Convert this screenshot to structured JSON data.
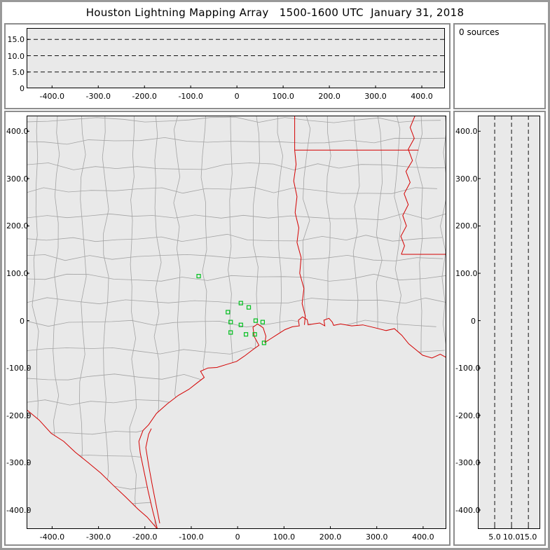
{
  "window": {
    "title": "Houston Lightning Mapping Array   1500-1600 UTC  January 31, 2018"
  },
  "status_panel": {
    "text": "0 sources"
  },
  "colors": {
    "plot_background": "#e9e9e9",
    "county_line": "#a3a3a3",
    "state_border": "#d40000",
    "station_marker": "#00bf1e",
    "grid_dash": "#111111",
    "panel_frame": "#8d8d8d"
  },
  "chart_data": [
    {
      "id": "altitude_vs_eastwest",
      "type": "scatter",
      "description": "Altitude (km) vs east-west distance (km); empty, 0 lightning sources plotted",
      "x_ticks": [
        -400,
        -300,
        -200,
        -100,
        0,
        100,
        200,
        300,
        400
      ],
      "x_tick_labels": [
        "-400.0",
        "-300.0",
        "-200.0",
        "-100.0",
        "0",
        "100.0",
        "200.0",
        "300.0",
        "400.0"
      ],
      "xlim": [
        -455,
        450
      ],
      "y_ticks": [
        0,
        5,
        10,
        15
      ],
      "y_tick_labels": [
        "0",
        "5.0",
        "10.0",
        "15.0"
      ],
      "ylim": [
        0,
        18.5
      ],
      "grid": {
        "orientation": "horizontal",
        "values": [
          5,
          10,
          15
        ],
        "style": "dashed"
      },
      "points": []
    },
    {
      "id": "plan_view_map",
      "type": "scatter",
      "description": "Plan view map (km east-west vs km north-south) centered on Houston; gray county lines, red state borders and coastline, green squares are LMA stations; no source points",
      "x_ticks": [
        -400,
        -300,
        -200,
        -100,
        0,
        100,
        200,
        300,
        400
      ],
      "x_tick_labels": [
        "-400.0",
        "-300.0",
        "-200.0",
        "-100.0",
        "0",
        "100.0",
        "200.0",
        "300.0",
        "400.0"
      ],
      "xlim": [
        -455,
        450
      ],
      "y_ticks": [
        400,
        300,
        200,
        100,
        0,
        -100,
        -200,
        -300,
        -400
      ],
      "y_tick_labels": [
        "400.0",
        "300.0",
        "200.0",
        "100.0",
        "0",
        "-100.0",
        "-200.0",
        "-300.0",
        "-400.0"
      ],
      "ylim": [
        -440,
        433
      ],
      "stations": [
        {
          "x": -84,
          "y": 94
        },
        {
          "x": 7,
          "y": 37
        },
        {
          "x": 24,
          "y": 28
        },
        {
          "x": -21,
          "y": 18
        },
        {
          "x": -15,
          "y": -3
        },
        {
          "x": 7,
          "y": -9
        },
        {
          "x": 39,
          "y": 0
        },
        {
          "x": 54,
          "y": -3
        },
        {
          "x": -15,
          "y": -25
        },
        {
          "x": 18,
          "y": -29
        },
        {
          "x": 37,
          "y": -29
        },
        {
          "x": 57,
          "y": -47
        }
      ],
      "points": []
    },
    {
      "id": "altitude_vs_northsouth",
      "type": "scatter",
      "description": "Altitude (km) vs north-south distance (km); empty, 0 lightning sources plotted",
      "x_ticks": [
        5,
        10,
        15
      ],
      "x_tick_labels": [
        "5.0",
        "10.0",
        "15.0"
      ],
      "xlim": [
        0,
        18.5
      ],
      "y_ticks": [
        400,
        300,
        200,
        100,
        0,
        -100,
        -200,
        -300,
        -400
      ],
      "y_tick_labels": [
        "400.0",
        "300.0",
        "200.0",
        "100.0",
        "0",
        "-100.0",
        "-200.0",
        "-300.0",
        "-400.0"
      ],
      "ylim": [
        -440,
        433
      ],
      "grid": {
        "orientation": "vertical",
        "values": [
          5,
          10,
          15
        ],
        "style": "dashed"
      },
      "points": []
    }
  ]
}
